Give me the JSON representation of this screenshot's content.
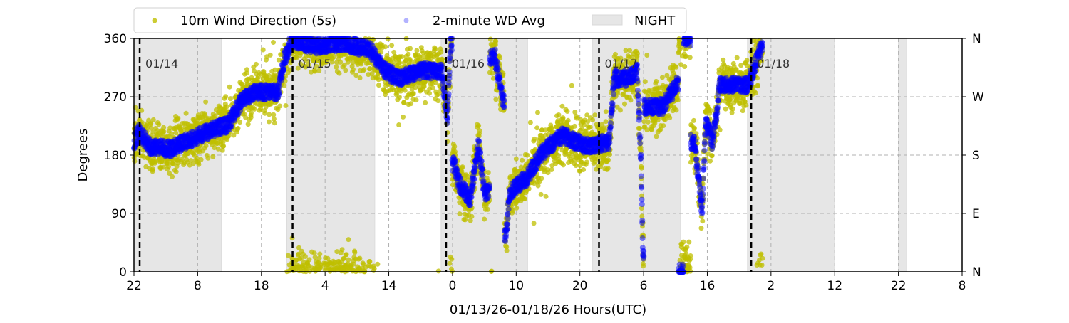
{
  "chart_data": {
    "type": "scatter",
    "xlabel": "01/13/26-01/18/26  Hours(UTC)",
    "ylabel": "Degrees",
    "xlim": [
      0,
      130
    ],
    "ylim": [
      0,
      360
    ],
    "x_unit": "hours since 01/13 22:00 UTC",
    "xticks": [
      {
        "value": 0,
        "label": "22"
      },
      {
        "value": 10,
        "label": "8"
      },
      {
        "value": 20,
        "label": "18"
      },
      {
        "value": 30,
        "label": "4"
      },
      {
        "value": 40,
        "label": "14"
      },
      {
        "value": 50,
        "label": "0"
      },
      {
        "value": 60,
        "label": "10"
      },
      {
        "value": 70,
        "label": "20"
      },
      {
        "value": 80,
        "label": "6"
      },
      {
        "value": 90,
        "label": "16"
      },
      {
        "value": 100,
        "label": "2"
      },
      {
        "value": 110,
        "label": "12"
      },
      {
        "value": 120,
        "label": "22"
      },
      {
        "value": 130,
        "label": "8"
      }
    ],
    "yticks": [
      {
        "value": 0,
        "label": "0",
        "right": "N"
      },
      {
        "value": 90,
        "label": "90",
        "right": "E"
      },
      {
        "value": 180,
        "label": "180",
        "right": "S"
      },
      {
        "value": 270,
        "label": "270",
        "right": "W"
      },
      {
        "value": 360,
        "label": "360",
        "right": "N"
      }
    ],
    "grid": true,
    "legend_position": "top",
    "legend": [
      {
        "name": "10m Wind Direction (5s)",
        "color": "#bfbf00"
      },
      {
        "name": "2-minute WD Avg",
        "color": "#0000ff"
      },
      {
        "name": "NIGHT",
        "color": "#e6e6e6"
      }
    ],
    "date_markers": [
      {
        "x": 0.9,
        "label": "01/14"
      },
      {
        "x": 24.9,
        "label": "01/15"
      },
      {
        "x": 49.0,
        "label": "01/16"
      },
      {
        "x": 73.0,
        "label": "01/17"
      },
      {
        "x": 96.9,
        "label": "01/18"
      }
    ],
    "night_intervals": [
      [
        0,
        13.7
      ],
      [
        24,
        37.8
      ],
      [
        48.2,
        61.8
      ],
      [
        72,
        85.8
      ],
      [
        96.3,
        110
      ],
      [
        120,
        121.3
      ]
    ],
    "series": [
      {
        "name": "2-minute WD Avg",
        "points": [
          [
            0,
            200
          ],
          [
            0.8,
            216
          ],
          [
            2.5,
            194
          ],
          [
            5.8,
            189
          ],
          [
            8,
            200
          ],
          [
            11.4,
            216
          ],
          [
            14.8,
            227
          ],
          [
            17,
            266
          ],
          [
            19.2,
            277
          ],
          [
            22.6,
            277
          ],
          [
            23.7,
            331
          ],
          [
            24.8,
            359
          ],
          [
            28.2,
            348
          ],
          [
            32.7,
            353
          ],
          [
            37.1,
            342
          ],
          [
            39.4,
            310
          ],
          [
            41.6,
            298
          ],
          [
            45,
            310
          ],
          [
            48.3,
            310
          ],
          [
            49.2,
            233
          ],
          [
            49.7,
            353
          ],
          [
            50.2,
            167
          ],
          [
            51.1,
            134
          ],
          [
            52.8,
            112
          ],
          [
            54.1,
            200
          ],
          [
            55,
            123
          ],
          [
            56.7,
            331
          ],
          [
            57.9,
            266
          ],
          [
            58.4,
            57
          ],
          [
            59,
            123
          ],
          [
            61.7,
            145
          ],
          [
            64,
            183
          ],
          [
            67.3,
            211
          ],
          [
            70.7,
            194
          ],
          [
            74.6,
            200
          ],
          [
            75.4,
            298
          ],
          [
            77.4,
            298
          ],
          [
            79,
            310
          ],
          [
            79.6,
            167
          ],
          [
            79.9,
            24
          ],
          [
            80.2,
            255
          ],
          [
            83,
            255
          ],
          [
            85.2,
            288
          ],
          [
            85.8,
            0
          ],
          [
            86.8,
            360
          ],
          [
            88,
            200
          ],
          [
            89.2,
            90
          ],
          [
            89.7,
            233
          ],
          [
            90.8,
            200
          ],
          [
            92,
            288
          ],
          [
            96.4,
            288
          ],
          [
            98.7,
            353
          ]
        ]
      },
      {
        "name": "10m Wind Direction (5s)",
        "spread_deg": 28,
        "note_values": "5s samples scattered around the 2-minute average"
      }
    ]
  }
}
